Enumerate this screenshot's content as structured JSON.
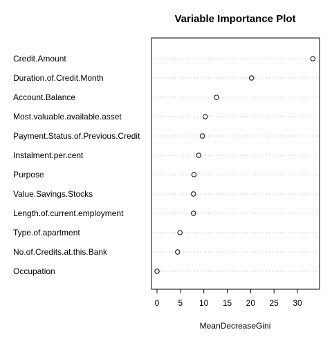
{
  "chart_data": {
    "type": "scatter",
    "title": "Variable Importance Plot",
    "xlabel": "MeanDecreaseGini",
    "ylabel": "",
    "xlim": [
      0,
      33.5
    ],
    "xticks": [
      0,
      5,
      10,
      15,
      20,
      25,
      30
    ],
    "grid": "dotted horizontal guide lines per variable",
    "categories": [
      "Credit.Amount",
      "Duration.of.Credit.Month",
      "Account.Balance",
      "Most.valuable.available.asset",
      "Payment.Status.of.Previous.Credit",
      "Instalment.per.cent",
      "Purpose",
      "Value.Savings.Stocks",
      "Length.of.current.employment",
      "Type.of.apartment",
      "No.of.Credits.at.this.Bank",
      "Occupation"
    ],
    "values": [
      33.3,
      20.2,
      12.7,
      10.3,
      9.7,
      8.9,
      7.9,
      7.8,
      7.8,
      4.9,
      4.4,
      0.0
    ]
  }
}
